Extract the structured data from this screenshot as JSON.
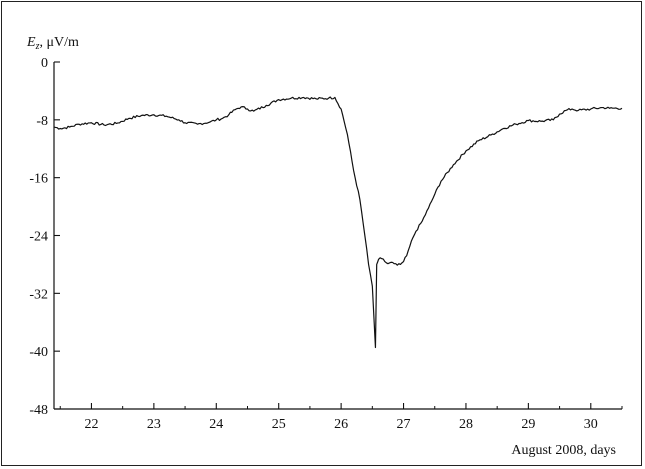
{
  "chart_data": {
    "type": "line",
    "ylabel_symbol": "E",
    "ylabel_subscript": "z",
    "ylabel_unit": ", μV/m",
    "xlabel": "August 2008, days",
    "xlim": [
      21.4,
      30.5
    ],
    "ylim": [
      -48,
      0
    ],
    "x_ticks": [
      22,
      23,
      24,
      25,
      26,
      27,
      28,
      29,
      30
    ],
    "y_ticks": [
      0,
      -8,
      -16,
      -24,
      -32,
      -40,
      -48
    ],
    "x_tick_labels": [
      "22",
      "23",
      "24",
      "25",
      "26",
      "27",
      "28",
      "29",
      "30"
    ],
    "y_tick_labels": [
      "0",
      "-8",
      "-16",
      "-24",
      "-32",
      "-40",
      "-48"
    ],
    "grid": false,
    "line_color": "#111111",
    "series": [
      {
        "x": [
          21.4,
          21.5,
          21.65,
          21.8,
          22.0,
          22.2,
          22.4,
          22.6,
          22.8,
          23.0,
          23.2,
          23.4,
          23.5,
          23.7,
          23.9,
          24.0,
          24.1,
          24.2,
          24.3,
          24.4,
          24.5,
          24.6,
          24.8,
          25.0,
          25.2,
          25.4,
          25.6,
          25.8,
          25.9,
          26.0,
          26.1,
          26.2,
          26.3,
          26.38,
          26.44,
          26.5,
          26.55,
          26.57,
          26.6,
          26.65,
          26.7,
          26.75,
          26.8,
          26.85,
          26.9,
          26.95,
          27.0,
          27.05,
          27.1,
          27.15,
          27.2,
          27.3,
          27.4,
          27.5,
          27.6,
          27.8,
          28.0,
          28.2,
          28.4,
          28.6,
          28.8,
          29.0,
          29.2,
          29.4,
          29.5,
          29.6,
          29.7,
          29.8,
          30.0,
          30.2,
          30.3,
          30.5
        ],
        "y": [
          -9.0,
          -9.2,
          -9.0,
          -8.6,
          -8.4,
          -8.7,
          -8.5,
          -7.8,
          -7.4,
          -7.3,
          -7.5,
          -8.0,
          -8.4,
          -8.6,
          -8.3,
          -8.0,
          -7.8,
          -7.3,
          -6.6,
          -6.2,
          -6.5,
          -6.8,
          -6.0,
          -5.2,
          -5.0,
          -4.9,
          -5.1,
          -5.0,
          -4.9,
          -6.5,
          -10.0,
          -15.0,
          -19.0,
          -24.0,
          -28.0,
          -31.0,
          -39.5,
          -28.0,
          -27.3,
          -27.2,
          -27.6,
          -27.9,
          -27.7,
          -27.9,
          -28.1,
          -28.0,
          -27.6,
          -26.8,
          -25.5,
          -24.3,
          -23.4,
          -22.0,
          -20.2,
          -18.3,
          -16.5,
          -14.2,
          -12.3,
          -10.9,
          -10.1,
          -9.2,
          -8.6,
          -8.1,
          -8.2,
          -8.0,
          -7.2,
          -6.7,
          -6.5,
          -6.7,
          -6.5,
          -6.3,
          -6.4,
          -6.4
        ]
      }
    ]
  }
}
